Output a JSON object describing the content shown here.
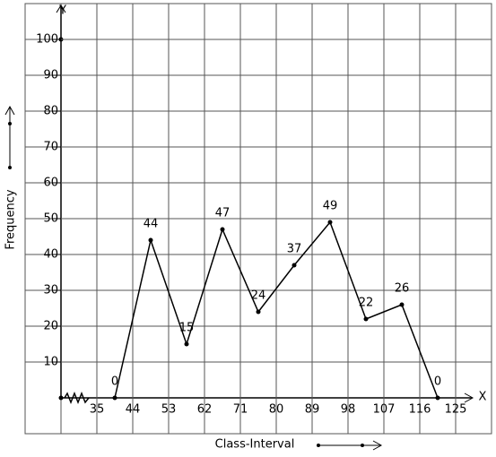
{
  "chart_data": {
    "type": "line",
    "x_label": "Class-Interval",
    "y_label": "Frequency",
    "x_axis_name": "X",
    "y_axis_name": "Y",
    "x": [
      39.5,
      48.5,
      57.5,
      66.5,
      75.5,
      84.5,
      93.5,
      102.5,
      111.5,
      120.5
    ],
    "values": [
      0,
      44,
      15,
      47,
      24,
      37,
      49,
      22,
      26,
      0
    ],
    "color": "#000000",
    "xlim": [
      17,
      134
    ],
    "xticks": [
      35,
      44,
      53,
      62,
      71,
      80,
      89,
      98,
      107,
      116,
      125
    ],
    "ylim": [
      -10,
      110
    ],
    "yticks": [
      10,
      20,
      30,
      40,
      50,
      60,
      70,
      80,
      90,
      100
    ],
    "grid": true
  }
}
